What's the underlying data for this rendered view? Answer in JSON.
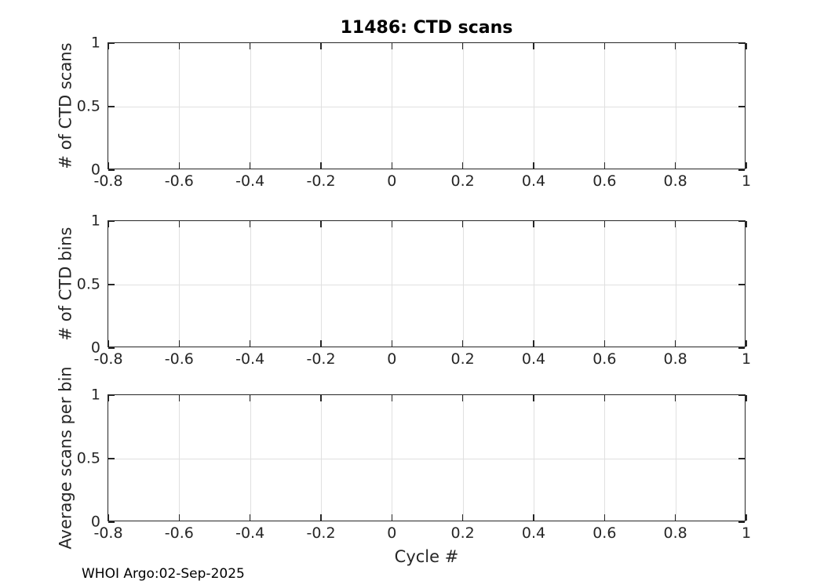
{
  "figure": {
    "footer": "WHOI Argo:02-Sep-2025",
    "colors": {
      "background": "#ffffff",
      "axis": "#262626",
      "grid": "#e0e0e0",
      "title": "#000000"
    }
  },
  "chart_data": [
    {
      "type": "line",
      "title": "11486: CTD scans",
      "ylabel": "# of CTD scans",
      "xlabel": "",
      "xlim": [
        -0.8,
        1
      ],
      "ylim": [
        0,
        1
      ],
      "xticks": [
        -0.8,
        -0.6,
        -0.4,
        -0.2,
        0,
        0.2,
        0.4,
        0.6,
        0.8,
        1
      ],
      "xtick_labels": [
        "-0.8",
        "-0.6",
        "-0.4",
        "-0.2",
        "0",
        "0.2",
        "0.4",
        "0.6",
        "0.8",
        "1"
      ],
      "yticks": [
        0,
        0.5,
        1
      ],
      "ytick_labels": [
        "0",
        "0.5",
        "1"
      ],
      "grid": true,
      "box": true,
      "series": []
    },
    {
      "type": "line",
      "title": "",
      "ylabel": "# of CTD bins",
      "xlabel": "",
      "xlim": [
        -0.8,
        1
      ],
      "ylim": [
        0,
        1
      ],
      "xticks": [
        -0.8,
        -0.6,
        -0.4,
        -0.2,
        0,
        0.2,
        0.4,
        0.6,
        0.8,
        1
      ],
      "xtick_labels": [
        "-0.8",
        "-0.6",
        "-0.4",
        "-0.2",
        "0",
        "0.2",
        "0.4",
        "0.6",
        "0.8",
        "1"
      ],
      "yticks": [
        0,
        0.5,
        1
      ],
      "ytick_labels": [
        "0",
        "0.5",
        "1"
      ],
      "grid": true,
      "box": true,
      "series": []
    },
    {
      "type": "line",
      "title": "",
      "ylabel": "Average scans per bin",
      "xlabel": "Cycle #",
      "xlim": [
        -0.8,
        1
      ],
      "ylim": [
        0,
        1
      ],
      "xticks": [
        -0.8,
        -0.6,
        -0.4,
        -0.2,
        0,
        0.2,
        0.4,
        0.6,
        0.8,
        1
      ],
      "xtick_labels": [
        "-0.8",
        "-0.6",
        "-0.4",
        "-0.2",
        "0",
        "0.2",
        "0.4",
        "0.6",
        "0.8",
        "1"
      ],
      "yticks": [
        0,
        0.5,
        1
      ],
      "ytick_labels": [
        "0",
        "0.5",
        "1"
      ],
      "grid": true,
      "box": true,
      "series": []
    }
  ]
}
